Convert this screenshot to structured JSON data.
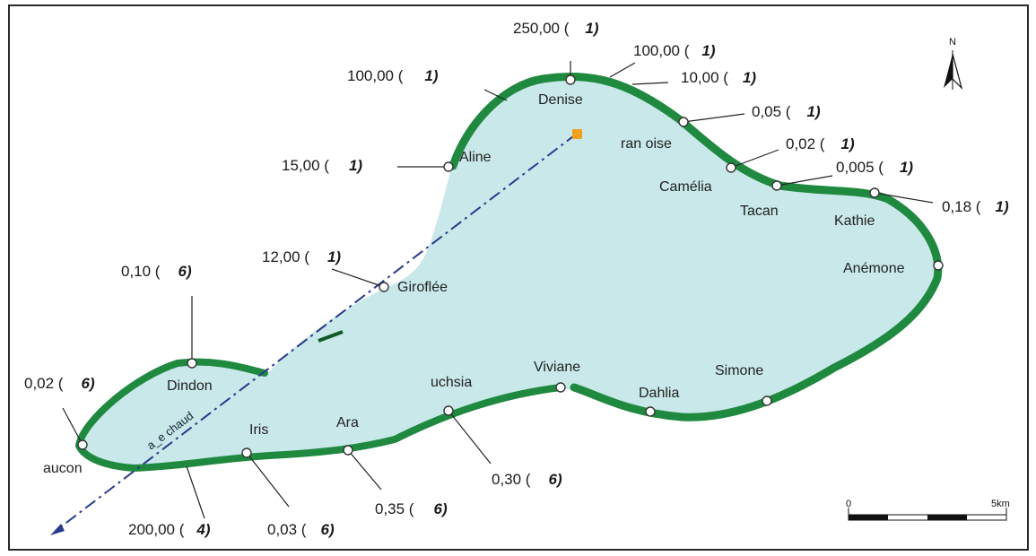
{
  "map": {
    "colors": {
      "lagoon": "#c9e8ea",
      "reef": "#1f8a3f",
      "reef_dark": "#0f5a24",
      "frame": "#2a2a2a",
      "marker": "#f2a01f",
      "axis_line": "#2a3a8c"
    },
    "north_label": "N",
    "axis_label": "a_e chaud",
    "scale": {
      "start": "0",
      "end": "5km"
    },
    "sites": [
      {
        "id": "denise",
        "name": "Denise",
        "value": "250,00 (",
        "code": "1)"
      },
      {
        "id": "r100a",
        "name": "",
        "value": "100,00 (",
        "code": "1)"
      },
      {
        "id": "r10",
        "name": "",
        "value": "10,00 (",
        "code": "1)"
      },
      {
        "id": "r100b",
        "name": "",
        "value": "100,00 (",
        "code": "1)"
      },
      {
        "id": "aline",
        "name": "Aline",
        "value": "15,00 (",
        "code": "1)"
      },
      {
        "id": "francoise",
        "name": "ran  oise",
        "value": "0,05 (",
        "code": "1)"
      },
      {
        "id": "camelia",
        "name": "Camélia",
        "value": "0,02 (",
        "code": "1)"
      },
      {
        "id": "tacan",
        "name": "Tacan",
        "value": "0,005 (",
        "code": "1)"
      },
      {
        "id": "kathie",
        "name": "Kathie",
        "value": "0,18 (",
        "code": "1)"
      },
      {
        "id": "anemone",
        "name": "Anémone",
        "value": "",
        "code": ""
      },
      {
        "id": "giroflee",
        "name": "Giroflée",
        "value": "12,00 (",
        "code": "1)"
      },
      {
        "id": "dindon",
        "name": "Dindon",
        "value": "0,10 (",
        "code": "6)"
      },
      {
        "id": "faucon",
        "name": "aucon",
        "value": "0,02 (",
        "code": "6)"
      },
      {
        "id": "simone",
        "name": "Simone",
        "value": "",
        "code": ""
      },
      {
        "id": "viviane",
        "name": "Viviane",
        "value": "",
        "code": ""
      },
      {
        "id": "dahlia",
        "name": "Dahlia",
        "value": "",
        "code": ""
      },
      {
        "id": "fuchsia",
        "name": "uchsia",
        "value": "0,30 (",
        "code": "6)"
      },
      {
        "id": "ara",
        "name": "Ara",
        "value": "0,35 (",
        "code": "6)"
      },
      {
        "id": "iris",
        "name": "Iris",
        "value": "0,03 (",
        "code": "6)"
      },
      {
        "id": "r200",
        "name": "",
        "value": "200,00 (",
        "code": "4)"
      }
    ]
  }
}
